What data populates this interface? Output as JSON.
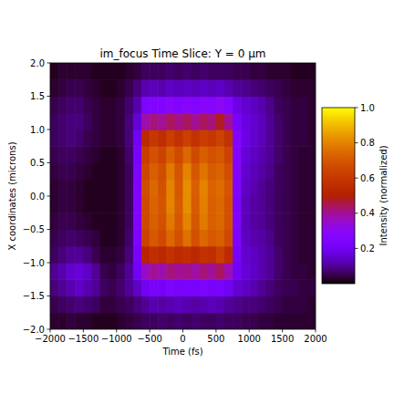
{
  "chart_data": {
    "type": "heatmap",
    "title": "im_focus Time Slice: Y = 0 μm",
    "x_label": "Time (fs)",
    "y_label": "X coordinates (microns)",
    "color": "gnuplot",
    "xlim": [
      -2000,
      2000
    ],
    "ylim": [
      -2,
      2
    ],
    "xticks": [
      {
        "value": -2000,
        "label": "−2000"
      },
      {
        "value": -1500,
        "label": "−1500"
      },
      {
        "value": -1000,
        "label": "−1000"
      },
      {
        "value": -500,
        "label": "−500"
      },
      0,
      500,
      1000,
      1500,
      2000
    ],
    "yticks": [
      {
        "value": -2,
        "label": "−2.0"
      },
      {
        "value": -1.5,
        "label": "−1.5"
      },
      {
        "value": -1,
        "label": "−1.0"
      },
      {
        "value": -0.5,
        "label": "−0.5"
      },
      {
        "value": 0,
        "label": "0.0"
      },
      0.5,
      {
        "value": 1,
        "label": "1.0"
      },
      1.5,
      {
        "value": 2,
        "label": "2.0"
      }
    ],
    "x": [
      -1937.5,
      -1812.5,
      -1687.5,
      -1562.5,
      -1437.5,
      -1312.5,
      -1187.5,
      -1062.5,
      -937.5,
      -812.5,
      -687.5,
      -562.5,
      -437.5,
      -312.5,
      -187.5,
      -62.5,
      62.5,
      187.5,
      312.5,
      437.5,
      562.5,
      687.5,
      812.5,
      937.5,
      1062.5,
      1187.5,
      1312.5,
      1437.5,
      1562.5,
      1687.5,
      1812.5,
      1937.5
    ],
    "y": [
      -1.875,
      -1.625,
      -1.375,
      -1.125,
      -0.875,
      -0.625,
      -0.375,
      -0.125,
      0.125,
      0.375,
      0.625,
      0.875,
      1.125,
      1.375,
      1.625,
      1.875
    ],
    "cells": [
      [
        0.03,
        0.03,
        0.04,
        0.03,
        0.03,
        0.02,
        0.02,
        0.02,
        0.03,
        0.04,
        0.05,
        0.06,
        0.06,
        0.07,
        0.06,
        0.07,
        0.06,
        0.07,
        0.06,
        0.06,
        0.07,
        0.06,
        0.06,
        0.05,
        0.05,
        0.04,
        0.04,
        0.03,
        0.03,
        0.03,
        0.03,
        0.03
      ],
      [
        0.05,
        0.06,
        0.07,
        0.08,
        0.07,
        0.06,
        0.04,
        0.04,
        0.05,
        0.06,
        0.08,
        0.1,
        0.12,
        0.11,
        0.12,
        0.13,
        0.12,
        0.11,
        0.12,
        0.13,
        0.12,
        0.1,
        0.09,
        0.08,
        0.08,
        0.07,
        0.06,
        0.05,
        0.04,
        0.04,
        0.04,
        0.03
      ],
      [
        0.08,
        0.1,
        0.12,
        0.14,
        0.12,
        0.1,
        0.06,
        0.05,
        0.07,
        0.1,
        0.14,
        0.2,
        0.22,
        0.21,
        0.24,
        0.22,
        0.23,
        0.22,
        0.24,
        0.22,
        0.23,
        0.2,
        0.15,
        0.14,
        0.12,
        0.1,
        0.08,
        0.06,
        0.05,
        0.05,
        0.04,
        0.04
      ],
      [
        0.1,
        0.12,
        0.15,
        0.16,
        0.14,
        0.1,
        0.05,
        0.04,
        0.06,
        0.1,
        0.2,
        0.36,
        0.4,
        0.38,
        0.42,
        0.4,
        0.41,
        0.39,
        0.42,
        0.4,
        0.44,
        0.38,
        0.2,
        0.16,
        0.14,
        0.12,
        0.1,
        0.07,
        0.05,
        0.04,
        0.04,
        0.03
      ],
      [
        0.06,
        0.08,
        0.1,
        0.1,
        0.08,
        0.05,
        0.03,
        0.03,
        0.04,
        0.08,
        0.22,
        0.52,
        0.56,
        0.54,
        0.58,
        0.55,
        0.57,
        0.54,
        0.58,
        0.56,
        0.62,
        0.55,
        0.22,
        0.15,
        0.14,
        0.12,
        0.1,
        0.07,
        0.05,
        0.04,
        0.03,
        0.03
      ],
      [
        0.05,
        0.06,
        0.07,
        0.06,
        0.05,
        0.04,
        0.02,
        0.02,
        0.03,
        0.07,
        0.24,
        0.64,
        0.7,
        0.66,
        0.74,
        0.68,
        0.76,
        0.68,
        0.74,
        0.7,
        0.72,
        0.66,
        0.24,
        0.14,
        0.12,
        0.11,
        0.09,
        0.06,
        0.05,
        0.04,
        0.03,
        0.03
      ],
      [
        0.04,
        0.05,
        0.05,
        0.04,
        0.03,
        0.02,
        0.02,
        0.02,
        0.03,
        0.06,
        0.25,
        0.66,
        0.72,
        0.68,
        0.78,
        0.7,
        0.8,
        0.7,
        0.78,
        0.72,
        0.74,
        0.68,
        0.25,
        0.13,
        0.11,
        0.1,
        0.08,
        0.06,
        0.05,
        0.04,
        0.03,
        0.03
      ],
      [
        0.03,
        0.04,
        0.04,
        0.03,
        0.02,
        0.02,
        0.02,
        0.02,
        0.03,
        0.06,
        0.25,
        0.66,
        0.73,
        0.69,
        0.8,
        0.71,
        0.82,
        0.71,
        0.79,
        0.72,
        0.74,
        0.68,
        0.24,
        0.13,
        0.11,
        0.1,
        0.08,
        0.06,
        0.05,
        0.04,
        0.03,
        0.03
      ],
      [
        0.03,
        0.04,
        0.04,
        0.03,
        0.02,
        0.02,
        0.02,
        0.02,
        0.03,
        0.06,
        0.25,
        0.67,
        0.74,
        0.68,
        0.8,
        0.7,
        0.82,
        0.72,
        0.8,
        0.73,
        0.75,
        0.69,
        0.25,
        0.14,
        0.12,
        0.1,
        0.08,
        0.06,
        0.05,
        0.04,
        0.03,
        0.03
      ],
      [
        0.04,
        0.05,
        0.05,
        0.04,
        0.03,
        0.02,
        0.02,
        0.02,
        0.03,
        0.06,
        0.24,
        0.65,
        0.72,
        0.67,
        0.78,
        0.69,
        0.8,
        0.7,
        0.77,
        0.71,
        0.73,
        0.67,
        0.25,
        0.15,
        0.13,
        0.11,
        0.09,
        0.06,
        0.05,
        0.04,
        0.03,
        0.03
      ],
      [
        0.05,
        0.06,
        0.06,
        0.05,
        0.04,
        0.03,
        0.02,
        0.02,
        0.03,
        0.07,
        0.22,
        0.62,
        0.68,
        0.64,
        0.72,
        0.66,
        0.74,
        0.66,
        0.72,
        0.68,
        0.7,
        0.64,
        0.26,
        0.16,
        0.14,
        0.12,
        0.1,
        0.07,
        0.05,
        0.04,
        0.03,
        0.03
      ],
      [
        0.06,
        0.07,
        0.08,
        0.07,
        0.05,
        0.04,
        0.03,
        0.03,
        0.04,
        0.08,
        0.2,
        0.55,
        0.6,
        0.56,
        0.62,
        0.58,
        0.63,
        0.58,
        0.62,
        0.6,
        0.64,
        0.58,
        0.26,
        0.18,
        0.15,
        0.13,
        0.1,
        0.07,
        0.05,
        0.04,
        0.04,
        0.03
      ],
      [
        0.06,
        0.07,
        0.08,
        0.08,
        0.06,
        0.04,
        0.03,
        0.03,
        0.04,
        0.08,
        0.16,
        0.38,
        0.42,
        0.4,
        0.44,
        0.41,
        0.44,
        0.4,
        0.44,
        0.42,
        0.48,
        0.4,
        0.22,
        0.17,
        0.15,
        0.13,
        0.1,
        0.07,
        0.05,
        0.04,
        0.04,
        0.03
      ],
      [
        0.05,
        0.06,
        0.07,
        0.07,
        0.05,
        0.04,
        0.03,
        0.03,
        0.04,
        0.07,
        0.12,
        0.24,
        0.26,
        0.25,
        0.28,
        0.26,
        0.28,
        0.26,
        0.28,
        0.27,
        0.3,
        0.26,
        0.18,
        0.15,
        0.14,
        0.12,
        0.09,
        0.06,
        0.05,
        0.04,
        0.04,
        0.03
      ],
      [
        0.03,
        0.04,
        0.05,
        0.05,
        0.04,
        0.03,
        0.02,
        0.02,
        0.03,
        0.05,
        0.08,
        0.12,
        0.13,
        0.12,
        0.14,
        0.13,
        0.14,
        0.13,
        0.14,
        0.13,
        0.14,
        0.12,
        0.1,
        0.09,
        0.08,
        0.07,
        0.06,
        0.05,
        0.04,
        0.03,
        0.03,
        0.03
      ],
      [
        0.02,
        0.03,
        0.03,
        0.03,
        0.03,
        0.02,
        0.02,
        0.02,
        0.02,
        0.03,
        0.04,
        0.06,
        0.06,
        0.06,
        0.07,
        0.06,
        0.07,
        0.06,
        0.07,
        0.06,
        0.06,
        0.06,
        0.05,
        0.05,
        0.04,
        0.04,
        0.03,
        0.03,
        0.03,
        0.02,
        0.02,
        0.02
      ]
    ],
    "colorbar": {
      "label": "Intensity (normalized)",
      "range": [
        0,
        1
      ],
      "ticks": [
        0.2,
        0.4,
        0.6,
        0.8,
        {
          "value": 1,
          "label": "1.0"
        }
      ]
    }
  }
}
